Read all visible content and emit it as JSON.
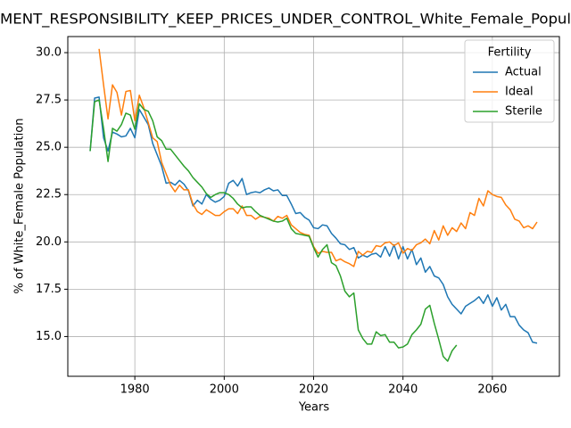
{
  "chart_data": {
    "type": "line",
    "title": "MENT_RESPONSIBILITY_KEEP_PRICES_UNDER_CONTROL_White_Female_Popul",
    "xlabel": "Years",
    "ylabel": "% of White_Female Population",
    "legend_title": "Fertility",
    "legend": "upper right",
    "grid": true,
    "x": [
      1970,
      1971,
      1972,
      1973,
      1974,
      1975,
      1976,
      1977,
      1978,
      1979,
      1980,
      1981,
      1982,
      1983,
      1984,
      1985,
      1986,
      1987,
      1988,
      1989,
      1990,
      1991,
      1992,
      1993,
      1994,
      1995,
      1996,
      1997,
      1998,
      1999,
      2000,
      2001,
      2002,
      2003,
      2004,
      2005,
      2006,
      2007,
      2008,
      2009,
      2010,
      2011,
      2012,
      2013,
      2014,
      2015,
      2016,
      2017,
      2018,
      2019,
      2020,
      2021,
      2022,
      2023,
      2024,
      2025,
      2026,
      2027,
      2028,
      2029,
      2030,
      2031,
      2032,
      2033,
      2034,
      2035,
      2036,
      2037,
      2038,
      2039,
      2040,
      2041,
      2042,
      2043,
      2044,
      2045,
      2046,
      2047,
      2048,
      2049,
      2050,
      2051,
      2052,
      2053,
      2054,
      2055,
      2056,
      2057,
      2058,
      2059,
      2060,
      2061,
      2062,
      2063,
      2064,
      2065,
      2066,
      2067,
      2068,
      2069,
      2070
    ],
    "xlim": [
      1965,
      2075
    ],
    "xticks": [
      1980,
      2000,
      2020,
      2040,
      2060
    ],
    "ylim": [
      12.9,
      30.85
    ],
    "yticks": [
      {
        "value": 15,
        "label": "15.0"
      },
      {
        "value": 17.5,
        "label": "17.5"
      },
      {
        "value": 20,
        "label": "20.0"
      },
      {
        "value": 22.5,
        "label": "22.5"
      },
      {
        "value": 25,
        "label": "25.0"
      },
      {
        "value": 27.5,
        "label": "27.5"
      },
      {
        "value": 30,
        "label": "30.0"
      }
    ],
    "series": [
      {
        "name": "Actual",
        "color": "#1f77b4",
        "values": [
          24.8,
          27.6,
          27.65,
          25.5,
          24.8,
          25.8,
          25.7,
          25.55,
          25.6,
          26.0,
          25.5,
          27.0,
          26.6,
          26.2,
          25.2,
          24.6,
          24.0,
          23.1,
          23.15,
          23.0,
          23.25,
          23.05,
          22.7,
          21.9,
          22.2,
          22.0,
          22.5,
          22.25,
          22.1,
          22.2,
          22.4,
          23.1,
          23.25,
          22.95,
          23.35,
          22.5,
          22.6,
          22.65,
          22.6,
          22.75,
          22.85,
          22.7,
          22.75,
          22.45,
          22.45,
          22.0,
          21.5,
          21.55,
          21.3,
          21.15,
          20.75,
          20.7,
          20.9,
          20.85,
          20.45,
          20.2,
          19.9,
          19.85,
          19.6,
          19.7,
          19.15,
          19.3,
          19.2,
          19.35,
          19.4,
          19.2,
          19.75,
          19.25,
          19.85,
          19.1,
          19.75,
          19.1,
          19.6,
          18.8,
          19.15,
          18.4,
          18.7,
          18.2,
          18.1,
          17.75,
          17.1,
          16.7,
          16.45,
          16.2,
          16.6,
          16.75,
          16.9,
          17.1,
          16.75,
          17.2,
          16.6,
          17.05,
          16.4,
          16.7,
          16.05,
          16.05,
          15.6,
          15.35,
          15.2,
          14.7,
          14.65
        ]
      },
      {
        "name": "Ideal",
        "color": "#ff7f0e",
        "values": [
          null,
          null,
          30.2,
          28.3,
          26.5,
          28.3,
          27.9,
          26.7,
          27.95,
          28.0,
          26.4,
          27.75,
          27.1,
          26.3,
          25.5,
          25.3,
          24.2,
          23.6,
          23.0,
          22.65,
          23.0,
          22.75,
          22.75,
          22.0,
          21.6,
          21.45,
          21.7,
          21.55,
          21.4,
          21.4,
          21.6,
          21.75,
          21.75,
          21.5,
          21.9,
          21.4,
          21.4,
          21.2,
          21.35,
          21.3,
          21.25,
          21.1,
          21.35,
          21.25,
          21.4,
          20.9,
          20.7,
          20.5,
          20.4,
          20.35,
          19.75,
          19.4,
          19.5,
          19.45,
          19.45,
          19.0,
          19.1,
          18.95,
          18.85,
          18.7,
          19.5,
          19.3,
          19.5,
          19.45,
          19.8,
          19.75,
          19.95,
          20.0,
          19.8,
          19.95,
          19.4,
          19.65,
          19.55,
          19.85,
          19.95,
          20.15,
          19.9,
          20.6,
          20.1,
          20.85,
          20.35,
          20.75,
          20.55,
          21.0,
          20.7,
          21.55,
          21.4,
          22.3,
          21.9,
          22.7,
          22.5,
          22.4,
          22.35,
          21.95,
          21.7,
          21.2,
          21.1,
          20.75,
          20.85,
          20.7,
          21.05
        ]
      },
      {
        "name": "Sterile",
        "color": "#2ca02c",
        "values": [
          24.8,
          27.4,
          27.5,
          26.0,
          24.25,
          26.0,
          25.85,
          26.2,
          26.8,
          26.7,
          25.95,
          27.3,
          27.0,
          26.9,
          26.4,
          25.55,
          25.35,
          24.9,
          24.9,
          24.6,
          24.3,
          24.0,
          23.75,
          23.4,
          23.15,
          22.9,
          22.55,
          22.35,
          22.5,
          22.6,
          22.6,
          22.5,
          22.3,
          22.0,
          21.8,
          21.85,
          21.85,
          21.6,
          21.4,
          21.3,
          21.2,
          21.1,
          21.05,
          21.1,
          21.25,
          20.7,
          20.45,
          20.4,
          20.35,
          20.3,
          19.7,
          19.2,
          19.6,
          19.85,
          18.9,
          18.75,
          18.2,
          17.4,
          17.1,
          17.3,
          15.35,
          14.9,
          14.6,
          14.6,
          15.25,
          15.05,
          15.1,
          14.7,
          14.7,
          14.4,
          14.45,
          14.6,
          15.1,
          15.35,
          15.65,
          16.45,
          16.65,
          15.7,
          14.85,
          13.95,
          13.7,
          14.25,
          14.55,
          null,
          null,
          null,
          null,
          null,
          null,
          null,
          null,
          null,
          null,
          null,
          null,
          null,
          null,
          null,
          null,
          null,
          null
        ]
      }
    ]
  }
}
